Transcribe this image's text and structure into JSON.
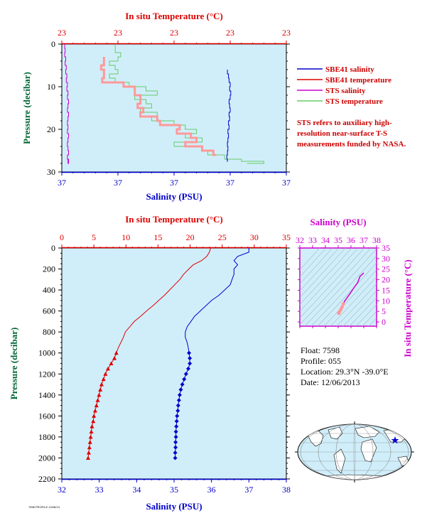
{
  "colors": {
    "plot_bg": "#d0eefa",
    "temperature": "#dd0000",
    "salinity": "#0000cc",
    "sts_salinity": "#cc00cc",
    "sts_temperature": "#66cc66",
    "sts_temperature_light": "#ff9999",
    "pressure_axis": "#006633",
    "ts_axis": "#cc00cc"
  },
  "legend": {
    "items": [
      {
        "label": "SBE41 salinity",
        "color": "#0000cc"
      },
      {
        "label": "SBE41 temperature",
        "color": "#dd0000"
      },
      {
        "label": "STS salinity",
        "color": "#cc00cc"
      },
      {
        "label": "STS temperature",
        "color": "#66cc66"
      }
    ],
    "note": "STS refers to auxiliary high-resolution near-surface T-S measurements funded by NASA."
  },
  "float_info": {
    "float": "Float:  7598",
    "profile": "Profile:  055",
    "location": "Location:  29.3°N  -39.0°E",
    "date": "Date:  12/06/2013"
  },
  "footer_text": "7598 PROFILE 12/06/13",
  "chart_data": [
    {
      "type": "line",
      "title": "",
      "top_axis_label": "In situ Temperature (°C)",
      "top_ticks": [
        "23",
        "23",
        "23",
        "23",
        "23"
      ],
      "bottom_axis_label": "Salinity (PSU)",
      "bottom_ticks": [
        "37",
        "37",
        "37",
        "37",
        "37"
      ],
      "ylabel": "Pressure (decibar)",
      "ylim": [
        0,
        30
      ],
      "y_ticks": [
        0,
        10,
        20,
        30
      ],
      "series": [
        {
          "name": "STS salinity",
          "x": [
            0.05,
            0.06,
            0.05,
            0.07,
            0.06,
            0.08,
            0.07,
            0.09,
            0.08,
            0.1,
            0.09,
            0.11,
            0.1,
            0.12,
            0.11,
            0.1,
            0.12,
            0.11,
            0.1,
            0.11,
            0.1,
            0.12,
            0.11,
            0.1,
            0.11,
            0.12,
            0.1,
            0.11,
            0.12,
            0.11
          ],
          "pressure": [
            0,
            1,
            2,
            3,
            4,
            5,
            6,
            7,
            8,
            9,
            10,
            11,
            12,
            13,
            14,
            15,
            16,
            17,
            18,
            19,
            20,
            21,
            22,
            23,
            24,
            25,
            26,
            27,
            28,
            27
          ]
        },
        {
          "name": "STS temperature",
          "x": [
            0.95,
            0.95,
            1.05,
            1.0,
            0.85,
            0.95,
            1.0,
            0.85,
            0.95,
            1.2,
            1.5,
            1.7,
            1.3,
            1.5,
            1.6,
            1.4,
            1.7,
            1.6,
            2.0,
            2.2,
            2.4,
            2.2,
            2.5,
            2.0,
            2.5,
            2.6,
            2.9,
            3.2,
            3.6,
            3.3
          ],
          "pressure": [
            0,
            1,
            2,
            3,
            4,
            5,
            6,
            7,
            8,
            9,
            10,
            11,
            12,
            13,
            14,
            15,
            16,
            17,
            18,
            19,
            20,
            21,
            22,
            23,
            24,
            25,
            26,
            27,
            27.5,
            28
          ]
        },
        {
          "name": "SBE41 salinity",
          "x": [
            2.95,
            2.97,
            2.98,
            3.0,
            2.99,
            3.01,
            3.0,
            2.98,
            2.99,
            3.0,
            2.98,
            2.99,
            2.97,
            2.98,
            2.96,
            2.97,
            2.96,
            2.95,
            2.96,
            2.95,
            2.94,
            2.95,
            2.94
          ],
          "pressure": [
            6,
            7,
            8,
            9,
            10,
            11,
            12,
            13,
            14,
            15,
            16,
            17,
            18,
            19,
            20,
            21,
            22,
            23,
            24,
            25,
            26,
            27,
            27.5
          ]
        },
        {
          "name": "SBE41 temperature",
          "x": [
            0.75,
            0.7,
            0.75,
            0.72,
            1.1,
            1.3,
            1.4,
            1.35,
            1.45,
            1.4,
            1.7,
            1.75,
            2.1,
            2.05,
            2.3,
            2.4,
            2.2,
            2.5,
            2.7,
            2.75
          ],
          "pressure": [
            3,
            5,
            6,
            8,
            9,
            10,
            12,
            14,
            15,
            16,
            17,
            18,
            19,
            20,
            21,
            22,
            23,
            24,
            25,
            26
          ]
        }
      ]
    },
    {
      "type": "line",
      "title": "",
      "top_axis_label": "In situ Temperature (°C)",
      "temperature_lim": [
        0,
        35
      ],
      "temperature_ticks": [
        0,
        5,
        10,
        15,
        20,
        25,
        30,
        35
      ],
      "bottom_axis_label": "Salinity (PSU)",
      "salinity_lim": [
        32,
        38
      ],
      "salinity_ticks": [
        32,
        33,
        34,
        35,
        36,
        37,
        38
      ],
      "ylabel": "Pressure (decibar)",
      "ylim": [
        0,
        2200
      ],
      "y_ticks": [
        0,
        200,
        400,
        600,
        800,
        1000,
        1200,
        1400,
        1600,
        1800,
        2000,
        2200
      ],
      "series": [
        {
          "name": "SBE41 temperature",
          "pressure": [
            0,
            40,
            80,
            120,
            160,
            200,
            250,
            300,
            350,
            400,
            450,
            500,
            550,
            600,
            650,
            700,
            750,
            800,
            850,
            900,
            950,
            1000,
            1050,
            1100,
            1150,
            1200,
            1250,
            1300,
            1350,
            1400,
            1450,
            1500,
            1550,
            1600,
            1650,
            1700,
            1750,
            1800,
            1850,
            1900,
            1950,
            2000
          ],
          "values": [
            23.2,
            23.0,
            22.6,
            21.8,
            20.5,
            19.8,
            19.0,
            18.4,
            17.6,
            16.8,
            16.0,
            15.1,
            14.2,
            13.2,
            12.3,
            11.3,
            10.6,
            9.9,
            9.6,
            9.2,
            8.8,
            8.5,
            8.2,
            7.7,
            7.2,
            6.8,
            6.5,
            6.2,
            6.0,
            5.8,
            5.6,
            5.4,
            5.2,
            5.0,
            4.9,
            4.7,
            4.6,
            4.5,
            4.4,
            4.3,
            4.2,
            4.1
          ]
        },
        {
          "name": "SBE41 salinity",
          "pressure": [
            0,
            40,
            80,
            120,
            160,
            200,
            250,
            300,
            350,
            400,
            450,
            500,
            550,
            600,
            650,
            700,
            750,
            800,
            850,
            900,
            950,
            1000,
            1050,
            1100,
            1150,
            1200,
            1250,
            1300,
            1350,
            1400,
            1450,
            1500,
            1550,
            1600,
            1650,
            1700,
            1750,
            1800,
            1850,
            1900,
            1950,
            2000
          ],
          "values": [
            37.0,
            37.0,
            36.7,
            36.6,
            36.7,
            36.6,
            36.6,
            36.55,
            36.5,
            36.35,
            36.2,
            36.0,
            35.85,
            35.7,
            35.55,
            35.45,
            35.35,
            35.3,
            35.3,
            35.35,
            35.38,
            35.4,
            35.42,
            35.42,
            35.38,
            35.32,
            35.27,
            35.22,
            35.18,
            35.15,
            35.13,
            35.11,
            35.1,
            35.08,
            35.07,
            35.06,
            35.05,
            35.05,
            35.04,
            35.04,
            35.03,
            35.03
          ]
        }
      ]
    },
    {
      "type": "scatter",
      "title": "",
      "top_axis_label": "Salinity (PSU)",
      "xlim": [
        32,
        38
      ],
      "x_ticks": [
        32,
        33,
        34,
        35,
        36,
        37,
        38
      ],
      "ylabel": "In situ Temperature (°C)",
      "ylim": [
        -2,
        35
      ],
      "y_ticks": [
        0,
        5,
        10,
        15,
        20,
        25,
        30,
        35
      ],
      "series": [
        {
          "name": "SBE41",
          "salinity": [
            35.05,
            35.1,
            35.2,
            35.3,
            35.4,
            35.5,
            35.7,
            35.9,
            36.1,
            36.3,
            36.5,
            36.6,
            36.7,
            37.0
          ],
          "temperature": [
            4.1,
            4.8,
            5.8,
            7.0,
            8.5,
            9.8,
            11.5,
            13.2,
            15.0,
            16.8,
            18.4,
            19.8,
            21.5,
            23.2
          ]
        }
      ]
    }
  ]
}
